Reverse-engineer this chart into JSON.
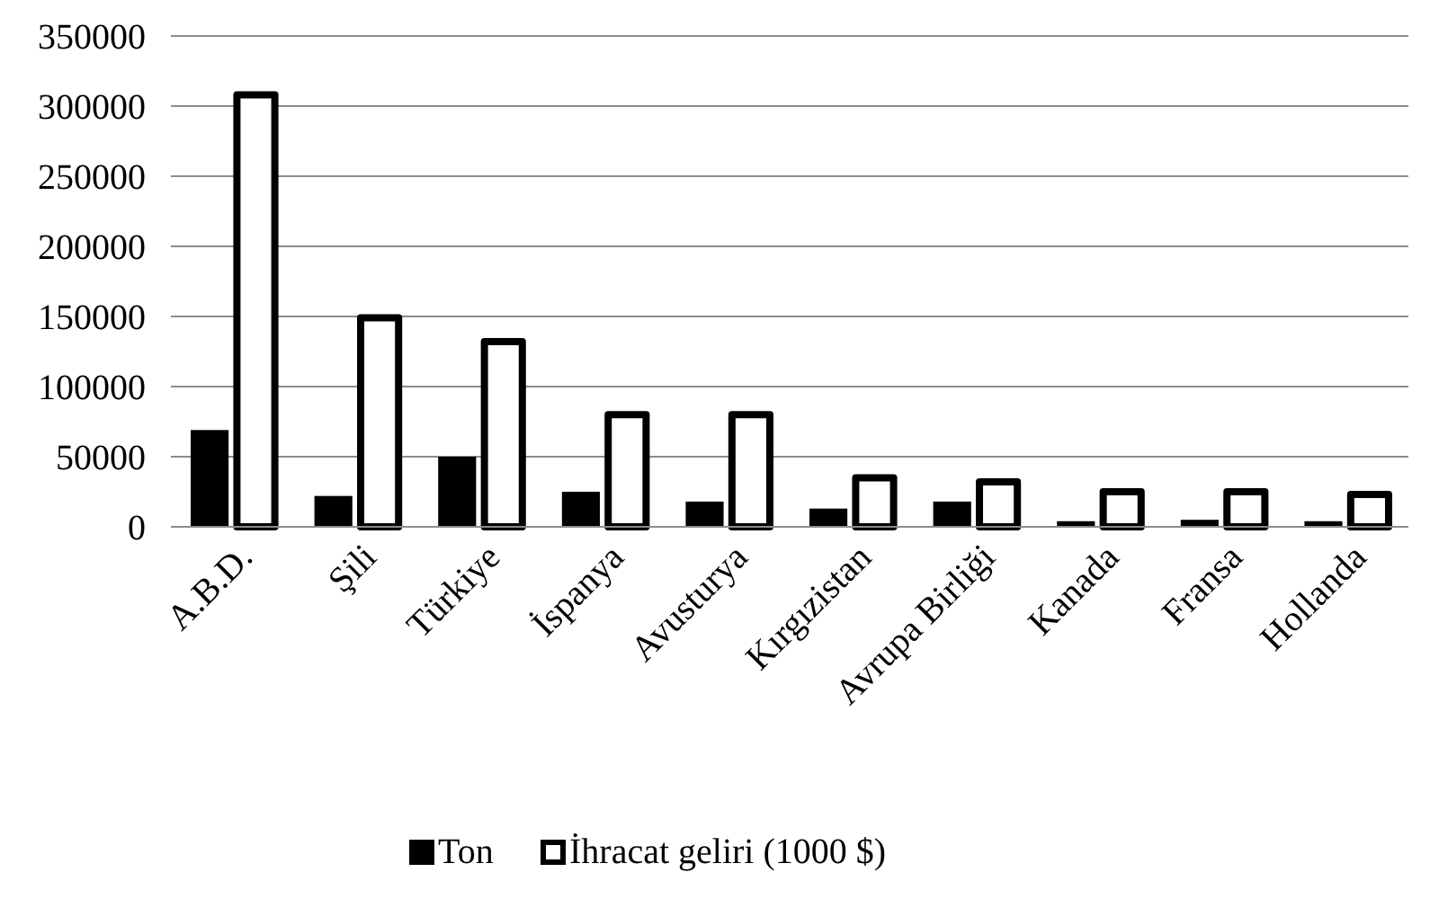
{
  "chart_data": {
    "type": "bar",
    "categories": [
      "A.B.D.",
      "Şili",
      "Türkiye",
      "İspanya",
      "Avusturya",
      "Kırgızistan",
      "Avrupa Birliği",
      "Kanada",
      "Fransa",
      "Hollanda"
    ],
    "series": [
      {
        "name": "Ton",
        "color": "#000000",
        "values": [
          69000,
          22000,
          50000,
          25000,
          18000,
          13000,
          18000,
          4000,
          5000,
          4000
        ]
      },
      {
        "name": "İhracat geliri (1000 $)",
        "color": "#ffffff",
        "values": [
          308000,
          149000,
          132000,
          80000,
          80000,
          35000,
          32000,
          25000,
          25000,
          23000
        ]
      }
    ],
    "ylim": [
      0,
      350000
    ],
    "yticks": [
      0,
      50000,
      100000,
      150000,
      200000,
      250000,
      300000,
      350000
    ],
    "grid": "y",
    "legend": "bottom"
  }
}
